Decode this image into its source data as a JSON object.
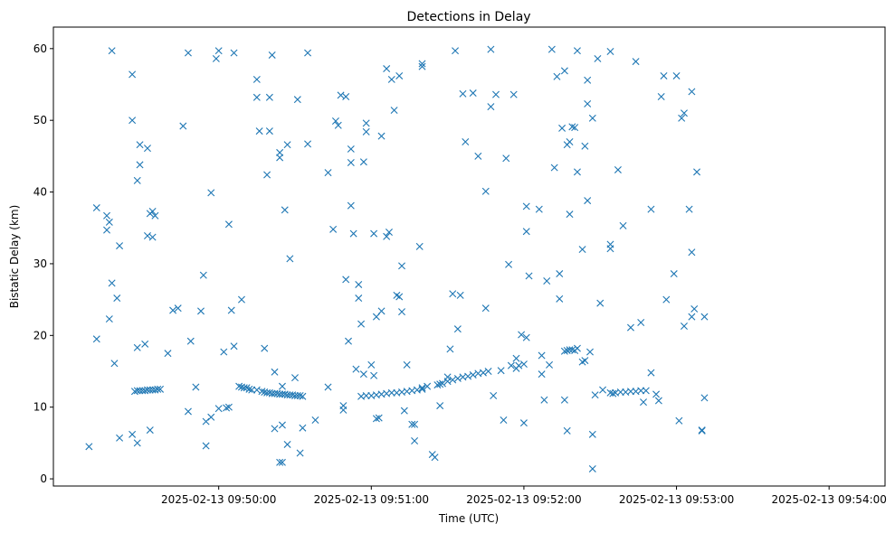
{
  "chart_data": {
    "type": "scatter",
    "title": "Detections in Delay",
    "xlabel": "Time (UTC)",
    "ylabel": "Bistatic Delay (km)",
    "marker": "x",
    "color": "#1f77b4",
    "x_unit": "seconds after 2025-02-13 09:49:00 UTC",
    "xlim": [
      -5,
      322
    ],
    "ylim": [
      -1,
      63
    ],
    "x_ticks": [
      {
        "value": 60,
        "label": "2025-02-13 09:50:00"
      },
      {
        "value": 120,
        "label": "2025-02-13 09:51:00"
      },
      {
        "value": 180,
        "label": "2025-02-13 09:52:00"
      },
      {
        "value": 240,
        "label": "2025-02-13 09:53:00"
      },
      {
        "value": 300,
        "label": "2025-02-13 09:54:00"
      }
    ],
    "y_ticks": [
      {
        "value": 0,
        "label": "0"
      },
      {
        "value": 10,
        "label": "10"
      },
      {
        "value": 20,
        "label": "20"
      },
      {
        "value": 30,
        "label": "30"
      },
      {
        "value": 40,
        "label": "40"
      },
      {
        "value": 50,
        "label": "50"
      },
      {
        "value": 60,
        "label": "60"
      }
    ],
    "series": [
      {
        "name": "detections",
        "points": [
          [
            9,
            4.5
          ],
          [
            12,
            19.5
          ],
          [
            12,
            37.8
          ],
          [
            16,
            36.7
          ],
          [
            16,
            34.7
          ],
          [
            17,
            35.8
          ],
          [
            17,
            22.3
          ],
          [
            18,
            59.7
          ],
          [
            18,
            27.3
          ],
          [
            19,
            16.1
          ],
          [
            20,
            25.2
          ],
          [
            21,
            5.7
          ],
          [
            21,
            32.5
          ],
          [
            26,
            56.4
          ],
          [
            26,
            50.0
          ],
          [
            26,
            6.2
          ],
          [
            28,
            18.3
          ],
          [
            28,
            41.6
          ],
          [
            28,
            5.0
          ],
          [
            29,
            43.8
          ],
          [
            29,
            46.6
          ],
          [
            31,
            18.8
          ],
          [
            32,
            46.1
          ],
          [
            32,
            33.9
          ],
          [
            33,
            37.0
          ],
          [
            33,
            6.8
          ],
          [
            34,
            37.3
          ],
          [
            34,
            33.7
          ],
          [
            35,
            36.7
          ],
          [
            27,
            12.2
          ],
          [
            28,
            12.3
          ],
          [
            29,
            12.3
          ],
          [
            30,
            12.3
          ],
          [
            31,
            12.3
          ],
          [
            32,
            12.4
          ],
          [
            33,
            12.4
          ],
          [
            34,
            12.4
          ],
          [
            35,
            12.4
          ],
          [
            36,
            12.5
          ],
          [
            37,
            12.5
          ],
          [
            40,
            17.5
          ],
          [
            42,
            23.5
          ],
          [
            44,
            23.8
          ],
          [
            46,
            49.2
          ],
          [
            48,
            59.4
          ],
          [
            48,
            9.4
          ],
          [
            49,
            19.2
          ],
          [
            51,
            12.8
          ],
          [
            53,
            23.4
          ],
          [
            54,
            28.4
          ],
          [
            55,
            8.0
          ],
          [
            55,
            4.6
          ],
          [
            57,
            39.9
          ],
          [
            57,
            8.6
          ],
          [
            59,
            58.6
          ],
          [
            60,
            59.7
          ],
          [
            60,
            9.8
          ],
          [
            62,
            17.7
          ],
          [
            63,
            9.9
          ],
          [
            64,
            35.5
          ],
          [
            64,
            10.0
          ],
          [
            65,
            23.5
          ],
          [
            66,
            59.4
          ],
          [
            66,
            18.5
          ],
          [
            69,
            25.0
          ],
          [
            68,
            12.9
          ],
          [
            69,
            12.8
          ],
          [
            70,
            12.7
          ],
          [
            71,
            12.7
          ],
          [
            72,
            12.5
          ],
          [
            73,
            12.4
          ],
          [
            75,
            12.4
          ],
          [
            75,
            55.7
          ],
          [
            75,
            53.2
          ],
          [
            76,
            48.5
          ],
          [
            78,
            18.2
          ],
          [
            79,
            42.4
          ],
          [
            80,
            53.2
          ],
          [
            80,
            48.5
          ],
          [
            81,
            59.1
          ],
          [
            82,
            7.0
          ],
          [
            82,
            14.9
          ],
          [
            84,
            45.5
          ],
          [
            84,
            44.8
          ],
          [
            84,
            2.3
          ],
          [
            85,
            2.3
          ],
          [
            85,
            12.9
          ],
          [
            85,
            7.5
          ],
          [
            86,
            37.5
          ],
          [
            87,
            46.6
          ],
          [
            87,
            4.8
          ],
          [
            88,
            30.7
          ],
          [
            90,
            14.1
          ],
          [
            91,
            52.9
          ],
          [
            92,
            3.6
          ],
          [
            93,
            7.1
          ],
          [
            77,
            12.2
          ],
          [
            78,
            12.1
          ],
          [
            79,
            12.0
          ],
          [
            80,
            12.0
          ],
          [
            81,
            11.9
          ],
          [
            82,
            11.9
          ],
          [
            83,
            11.9
          ],
          [
            84,
            11.8
          ],
          [
            85,
            11.8
          ],
          [
            86,
            11.8
          ],
          [
            87,
            11.7
          ],
          [
            88,
            11.7
          ],
          [
            89,
            11.7
          ],
          [
            90,
            11.6
          ],
          [
            91,
            11.6
          ],
          [
            92,
            11.6
          ],
          [
            93,
            11.5
          ],
          [
            95,
            59.4
          ],
          [
            95,
            46.7
          ],
          [
            98,
            8.2
          ],
          [
            103,
            12.8
          ],
          [
            103,
            42.7
          ],
          [
            105,
            34.8
          ],
          [
            106,
            49.9
          ],
          [
            107,
            49.3
          ],
          [
            108,
            53.5
          ],
          [
            109,
            10.2
          ],
          [
            109,
            9.6
          ],
          [
            110,
            53.3
          ],
          [
            110,
            27.8
          ],
          [
            111,
            19.2
          ],
          [
            112,
            38.1
          ],
          [
            112,
            46.0
          ],
          [
            112,
            44.1
          ],
          [
            113,
            34.2
          ],
          [
            114,
            15.3
          ],
          [
            115,
            27.1
          ],
          [
            115,
            25.2
          ],
          [
            116,
            21.6
          ],
          [
            117,
            14.6
          ],
          [
            118,
            49.6
          ],
          [
            118,
            48.4
          ],
          [
            117,
            44.2
          ],
          [
            120,
            15.9
          ],
          [
            121,
            34.2
          ],
          [
            122,
            22.6
          ],
          [
            121,
            14.4
          ],
          [
            122,
            8.4
          ],
          [
            123,
            8.5
          ],
          [
            124,
            23.4
          ],
          [
            124,
            47.8
          ],
          [
            126,
            57.2
          ],
          [
            126,
            33.8
          ],
          [
            127,
            34.4
          ],
          [
            128,
            55.7
          ],
          [
            129,
            51.4
          ],
          [
            130,
            25.6
          ],
          [
            131,
            25.4
          ],
          [
            131,
            56.2
          ],
          [
            132,
            23.3
          ],
          [
            132,
            29.7
          ],
          [
            134,
            15.9
          ],
          [
            133,
            9.5
          ],
          [
            136,
            7.6
          ],
          [
            137,
            7.6
          ],
          [
            137,
            5.3
          ],
          [
            139,
            32.4
          ],
          [
            140,
            57.9
          ],
          [
            140,
            57.5
          ],
          [
            140,
            12.7
          ],
          [
            142,
            12.9
          ],
          [
            144,
            3.4
          ],
          [
            145,
            3.0
          ],
          [
            116,
            11.5
          ],
          [
            118,
            11.6
          ],
          [
            120,
            11.6
          ],
          [
            122,
            11.7
          ],
          [
            124,
            11.8
          ],
          [
            126,
            11.9
          ],
          [
            128,
            12.0
          ],
          [
            130,
            12.0
          ],
          [
            132,
            12.1
          ],
          [
            134,
            12.2
          ],
          [
            136,
            12.3
          ],
          [
            138,
            12.4
          ],
          [
            140,
            12.5
          ],
          [
            146,
            13.1
          ],
          [
            148,
            13.3
          ],
          [
            150,
            13.6
          ],
          [
            152,
            13.8
          ],
          [
            154,
            14.0
          ],
          [
            156,
            14.2
          ],
          [
            158,
            14.3
          ],
          [
            160,
            14.5
          ],
          [
            162,
            14.7
          ],
          [
            164,
            14.8
          ],
          [
            166,
            15.0
          ],
          [
            147,
            10.2
          ],
          [
            147,
            13.2
          ],
          [
            150,
            14.2
          ],
          [
            151,
            18.1
          ],
          [
            152,
            25.8
          ],
          [
            153,
            59.7
          ],
          [
            154,
            20.9
          ],
          [
            155,
            25.6
          ],
          [
            156,
            53.7
          ],
          [
            157,
            47.0
          ],
          [
            160,
            53.8
          ],
          [
            162,
            45.0
          ],
          [
            165,
            40.1
          ],
          [
            165,
            23.8
          ],
          [
            167,
            59.9
          ],
          [
            167,
            51.9
          ],
          [
            168,
            11.6
          ],
          [
            169,
            53.6
          ],
          [
            171,
            15.1
          ],
          [
            172,
            8.2
          ],
          [
            173,
            44.7
          ],
          [
            174,
            29.9
          ],
          [
            175,
            15.8
          ],
          [
            176,
            53.6
          ],
          [
            177,
            16.8
          ],
          [
            177,
            15.4
          ],
          [
            178,
            15.8
          ],
          [
            179,
            20.1
          ],
          [
            180,
            7.8
          ],
          [
            180,
            16.0
          ],
          [
            181,
            38.0
          ],
          [
            181,
            34.5
          ],
          [
            182,
            28.3
          ],
          [
            181,
            19.7
          ],
          [
            186,
            37.6
          ],
          [
            187,
            14.6
          ],
          [
            187,
            17.2
          ],
          [
            188,
            11.0
          ],
          [
            189,
            27.6
          ],
          [
            190,
            15.9
          ],
          [
            191,
            59.9
          ],
          [
            192,
            43.4
          ],
          [
            193,
            56.1
          ],
          [
            194,
            25.1
          ],
          [
            194,
            28.6
          ],
          [
            195,
            48.9
          ],
          [
            196,
            56.9
          ],
          [
            196,
            11.0
          ],
          [
            197,
            6.7
          ],
          [
            197,
            46.6
          ],
          [
            198,
            47.0
          ],
          [
            198,
            36.9
          ],
          [
            199,
            49.1
          ],
          [
            200,
            49.0
          ],
          [
            201,
            42.8
          ],
          [
            201,
            59.7
          ],
          [
            201,
            18.2
          ],
          [
            203,
            32.0
          ],
          [
            203,
            16.3
          ],
          [
            204,
            16.5
          ],
          [
            204,
            46.4
          ],
          [
            205,
            38.8
          ],
          [
            205,
            55.6
          ],
          [
            205,
            52.3
          ],
          [
            206,
            17.7
          ],
          [
            207,
            6.2
          ],
          [
            207,
            1.4
          ],
          [
            207,
            50.3
          ],
          [
            208,
            11.7
          ],
          [
            209,
            58.6
          ],
          [
            210,
            24.5
          ],
          [
            211,
            12.4
          ],
          [
            214,
            59.6
          ],
          [
            214,
            32.7
          ],
          [
            214,
            32.1
          ],
          [
            215,
            11.9
          ],
          [
            217,
            43.1
          ],
          [
            219,
            35.3
          ],
          [
            222,
            21.1
          ],
          [
            224,
            58.2
          ],
          [
            226,
            21.8
          ],
          [
            227,
            10.7
          ],
          [
            230,
            37.6
          ],
          [
            230,
            14.8
          ],
          [
            232,
            11.8
          ],
          [
            233,
            10.9
          ],
          [
            234,
            53.3
          ],
          [
            235,
            56.2
          ],
          [
            236,
            25.0
          ],
          [
            239,
            28.6
          ],
          [
            240,
            56.2
          ],
          [
            241,
            8.1
          ],
          [
            242,
            50.3
          ],
          [
            243,
            21.3
          ],
          [
            243,
            51.0
          ],
          [
            245,
            37.6
          ],
          [
            246,
            54.0
          ],
          [
            246,
            22.6
          ],
          [
            246,
            31.6
          ],
          [
            247,
            23.7
          ],
          [
            248,
            42.8
          ],
          [
            250,
            6.8
          ],
          [
            250,
            6.7
          ],
          [
            251,
            22.6
          ],
          [
            251,
            11.3
          ],
          [
            196,
            17.8
          ],
          [
            197,
            17.9
          ],
          [
            198,
            18.0
          ],
          [
            199,
            18.0
          ],
          [
            200,
            17.9
          ],
          [
            214,
            12.0
          ],
          [
            216,
            12.0
          ],
          [
            218,
            12.1
          ],
          [
            220,
            12.1
          ],
          [
            222,
            12.2
          ],
          [
            224,
            12.2
          ],
          [
            226,
            12.3
          ],
          [
            228,
            12.3
          ]
        ]
      }
    ]
  }
}
